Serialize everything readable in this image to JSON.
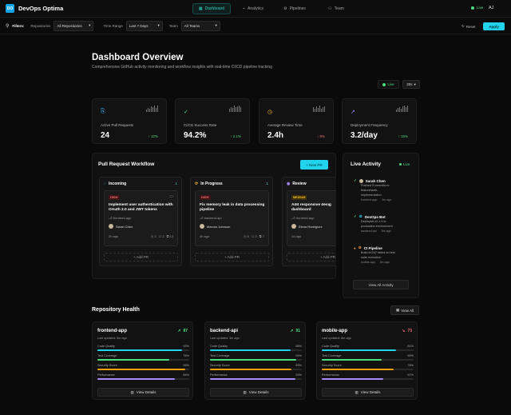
{
  "header": {
    "logo_text": "DO",
    "title": "DevOps Optima",
    "nav": [
      {
        "icon": "▦",
        "label": "Dashboard",
        "active": true
      },
      {
        "icon": "⌁",
        "label": "Analytics",
        "active": false
      },
      {
        "icon": "⚙",
        "label": "Pipelines",
        "active": false
      },
      {
        "icon": "⚇",
        "label": "Team",
        "active": false
      }
    ],
    "live_label": "Live",
    "user_initials": "AJ"
  },
  "filters": {
    "label": "Filters:",
    "repositories_label": "Repositories",
    "repositories_value": "All Repositories",
    "time_range_label": "Time Range",
    "time_range_value": "Last 7 Days",
    "team_label": "Team",
    "team_value": "All Teams",
    "reset_label": "Reset",
    "apply_label": "Apply"
  },
  "overview": {
    "title": "Dashboard Overview",
    "subtitle": "Comprehensive GitHub activity monitoring and workflow insights with real-time CI/CD pipeline tracking",
    "live_label": "Live",
    "interval": "30s"
  },
  "kpis": [
    {
      "label": "Active Pull Requests",
      "value": "24",
      "change": "↑ 12%",
      "change_color": "#4ade80",
      "icon": "⎘",
      "icon_color": "#38bdf8"
    },
    {
      "label": "CI/CD Success Rate",
      "value": "94.2%",
      "change": "↑ 2.1%",
      "change_color": "#4ade80",
      "icon": "✓",
      "icon_color": "#4ade80"
    },
    {
      "label": "Average Review Time",
      "value": "2.4h",
      "change": "↓ 8%",
      "change_color": "#f87171",
      "icon": "◷",
      "icon_color": "#fbbf24"
    },
    {
      "label": "Deployment Frequency",
      "value": "3.2/day",
      "change": "↑ 15%",
      "change_color": "#4ade80",
      "icon": "↗",
      "icon_color": "#a78bfa"
    }
  ],
  "workflow": {
    "title": "Pull Request Workflow",
    "new_pr_label": "+ New PR",
    "add_pr_label": "+ Add PR",
    "columns": [
      {
        "name": "Incoming",
        "count": "1",
        "icon": "◌",
        "icon_color": "#38bdf8",
        "card": {
          "priority": "HIGH",
          "priority_color": "#f87171",
          "priority_bg": "#3f1515",
          "title": "Implement user authentication with OAuth 2.0 and JWT tokens",
          "repo": "frontend-app",
          "author": "Sarah Chen",
          "age": "2h ago",
          "comments": "3",
          "checks": "2",
          "files": "12"
        }
      },
      {
        "name": "In Progress",
        "count": "1",
        "icon": "⟳",
        "icon_color": "#fbbf24",
        "card": {
          "priority": "HIGH",
          "priority_color": "#f87171",
          "priority_bg": "#3f1515",
          "title": "Fix memory leak in data processing pipeline",
          "repo": "backend-api",
          "author": "Marcus Johnson",
          "age": "4h ago",
          "comments": "5",
          "checks": "2",
          "files": "7"
        }
      },
      {
        "name": "Review",
        "count": "",
        "icon": "◉",
        "icon_color": "#a78bfa",
        "card": {
          "priority": "MEDIUM",
          "priority_color": "#fbbf24",
          "priority_bg": "#3b2f0c",
          "title": "Add responsive design to dashboard",
          "repo": "frontend-app",
          "author": "Elena Rodriguez",
          "age": "1d ago",
          "comments": "",
          "checks": "",
          "files": ""
        }
      }
    ]
  },
  "activity": {
    "title": "Live Activity",
    "live_label": "Live",
    "items": [
      {
        "icon": "✓",
        "icon_color": "#4ade80",
        "title": "Sarah Chen",
        "desc_1": "Pushed 3 commits to",
        "desc_2": "feature/auth-",
        "desc_3": "implementation",
        "repo": "frontend-app",
        "age": "2m ago"
      },
      {
        "icon": "✓",
        "icon_color": "#4ade80",
        "title": "DevOps Bot",
        "desc_1": "Deployed v2.1.4 to",
        "desc_2": "production environment",
        "desc_3": "",
        "repo": "backend-api",
        "age": "5m ago"
      },
      {
        "icon": "●",
        "icon_color": "#fb923c",
        "title": "CI Pipeline",
        "desc_1": "Build #1247 failed on test",
        "desc_2": "suite execution",
        "desc_3": "",
        "repo": "mobile-app",
        "age": "8m ago"
      }
    ],
    "view_all_label": "View All Activity"
  },
  "health": {
    "title": "Repository Health",
    "view_all_label": "View All",
    "metric_labels": [
      "Code Quality",
      "Test Coverage",
      "Security Score",
      "Performance"
    ],
    "metric_colors": [
      "#22d3ee",
      "#4ade80",
      "#f59e0b",
      "#a78bfa"
    ],
    "details_label": "View Details",
    "repos": [
      {
        "name": "frontend-app",
        "score": "87",
        "trend": "↗",
        "score_color": "#4ade80",
        "updated": "Last updated: 5m ago",
        "metrics": [
          "92%",
          "78%",
          "96%",
          "84%"
        ],
        "values": [
          0.92,
          0.78,
          0.96,
          0.84
        ]
      },
      {
        "name": "backend-api",
        "score": "91",
        "trend": "↗",
        "score_color": "#4ade80",
        "updated": "Last updated: 3m ago",
        "metrics": [
          "88%",
          "94%",
          "89%",
          "93%"
        ],
        "values": [
          0.88,
          0.94,
          0.89,
          0.93
        ]
      },
      {
        "name": "mobile-app",
        "score": "73",
        "trend": "↘",
        "score_color": "#f87171",
        "updated": "Last updated: 8m ago",
        "metrics": [
          "81%",
          "65%",
          "78%",
          "67%"
        ],
        "values": [
          0.81,
          0.65,
          0.78,
          0.67
        ]
      }
    ]
  }
}
